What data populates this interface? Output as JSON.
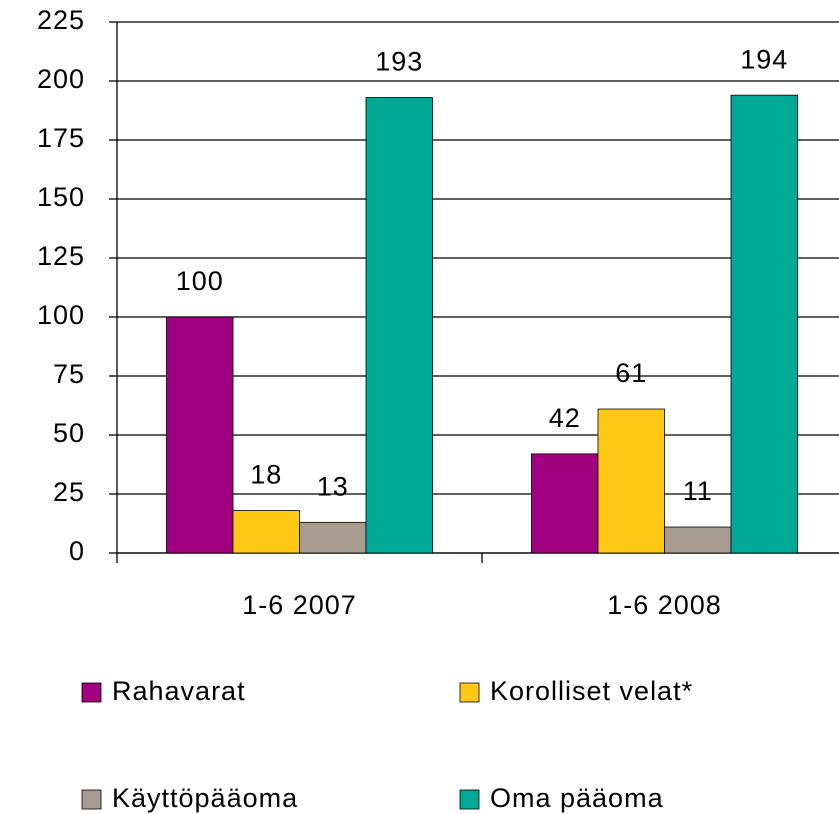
{
  "chart_data": {
    "type": "bar",
    "categories": [
      "1-6 2007",
      "1-6 2008"
    ],
    "series": [
      {
        "name": "Rahavarat",
        "color": "#A0007F",
        "values": [
          100,
          42
        ]
      },
      {
        "name": "Korolliset velat*",
        "color": "#FFC814",
        "values": [
          18,
          61
        ]
      },
      {
        "name": "Käyttöpääoma",
        "color": "#A89C90",
        "values": [
          13,
          11
        ]
      },
      {
        "name": "Oma pääoma",
        "color": "#00A896",
        "values": [
          193,
          194
        ]
      }
    ],
    "ylim": [
      0,
      225
    ],
    "yticks": [
      0,
      25,
      50,
      75,
      100,
      125,
      150,
      175,
      200,
      225
    ],
    "grid": true
  }
}
